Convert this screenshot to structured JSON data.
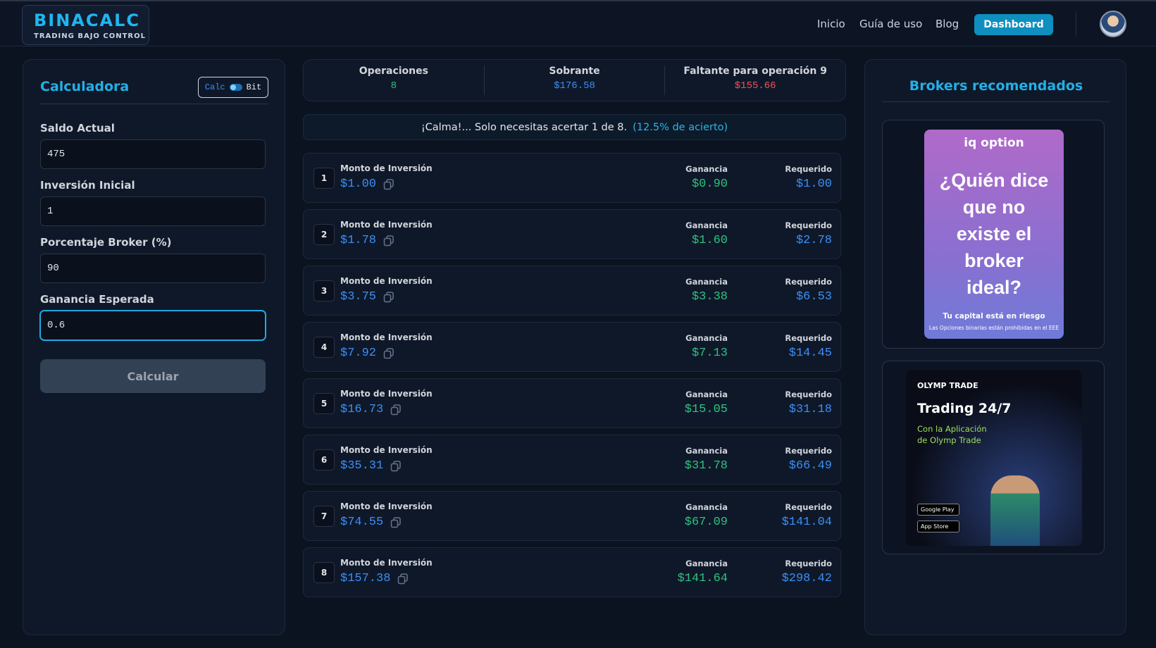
{
  "header": {
    "logo_title": "BINACALC",
    "logo_subtitle": "TRADING BAJO CONTROL",
    "nav": [
      "Inicio",
      "Guía de uso",
      "Blog"
    ],
    "dashboard": "Dashboard"
  },
  "calculator": {
    "title": "Calculadora",
    "toggle": [
      "Calc",
      "Bit"
    ],
    "fields": [
      {
        "label": "Saldo Actual",
        "value": "475"
      },
      {
        "label": "Inversión Inicial",
        "value": "1"
      },
      {
        "label": "Porcentaje Broker (%)",
        "value": "90"
      },
      {
        "label": "Ganancia Esperada",
        "value": "0.6"
      }
    ],
    "button": "Calcular"
  },
  "stats": [
    {
      "label": "Operaciones",
      "value": "8"
    },
    {
      "label": "Sobrante",
      "value": "$176.58"
    },
    {
      "label": "Faltante para operación 9",
      "value": "$155.66"
    }
  ],
  "message": {
    "text": "¡Calma!... Solo necesitas acertar 1 de 8.",
    "highlight": "(12.5% de acierto)"
  },
  "operations": {
    "amount_label": "Monto de Inversión",
    "gain_label": "Ganancia",
    "required_label": "Requerido",
    "rows": [
      {
        "number": "1",
        "amount": "$1.00",
        "gain": "$0.90",
        "required": "$1.00"
      },
      {
        "number": "2",
        "amount": "$1.78",
        "gain": "$1.60",
        "required": "$2.78"
      },
      {
        "number": "3",
        "amount": "$3.75",
        "gain": "$3.38",
        "required": "$6.53"
      },
      {
        "number": "4",
        "amount": "$7.92",
        "gain": "$7.13",
        "required": "$14.45"
      },
      {
        "number": "5",
        "amount": "$16.73",
        "gain": "$15.05",
        "required": "$31.18"
      },
      {
        "number": "6",
        "amount": "$35.31",
        "gain": "$31.78",
        "required": "$66.49"
      },
      {
        "number": "7",
        "amount": "$74.55",
        "gain": "$67.09",
        "required": "$141.04"
      },
      {
        "number": "8",
        "amount": "$157.38",
        "gain": "$141.64",
        "required": "$298.42"
      }
    ]
  },
  "brokers": {
    "title": "Brokers recomendados",
    "iq": {
      "brand": "iq option",
      "headline": "¿Quién dice que no existe el broker ideal?",
      "risk": "Tu capital está en riesgo",
      "disclaimer": "Las Opciones binarias están prohibidas en el EEE"
    },
    "olymp": {
      "brand": "OLYMP TRADE",
      "headline": "Trading 24/7",
      "subtitle": "Con la Aplicación de Olymp Trade",
      "stores": [
        "Google Play",
        "App Store"
      ]
    }
  }
}
